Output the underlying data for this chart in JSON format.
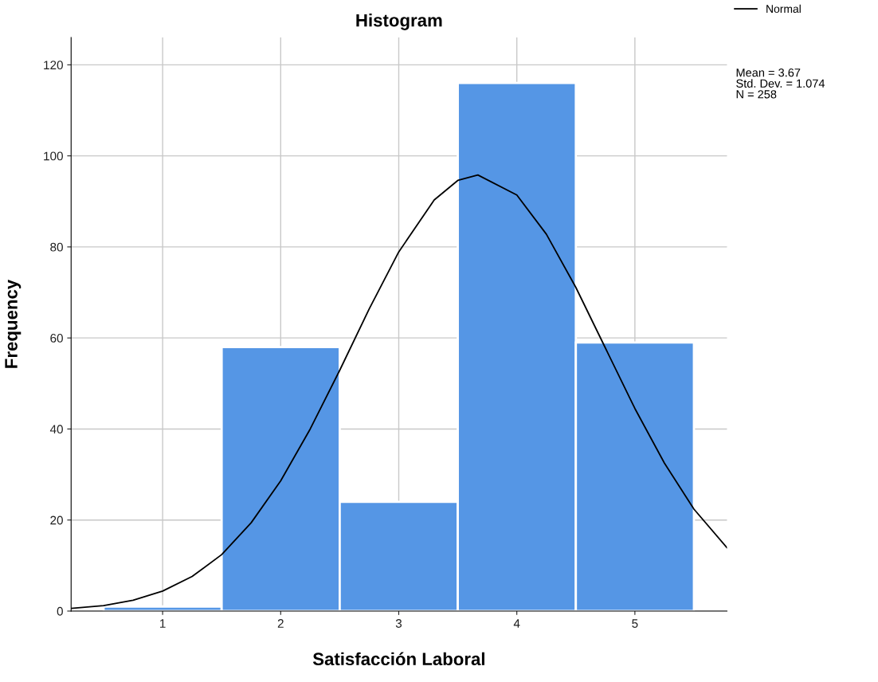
{
  "chart_data": {
    "type": "histogram",
    "title": "Histogram",
    "xlabel": "Satisfacción Laboral",
    "ylabel": "Frequency",
    "bins": [
      0.5,
      1.5,
      2.5,
      3.5,
      4.5,
      5.5
    ],
    "values": [
      1,
      58,
      24,
      116,
      59
    ],
    "color": "#5596e5",
    "series": [
      {
        "name": "Normal",
        "type": "line",
        "color": "#000000",
        "x": [
          0.225,
          0.5,
          0.75,
          1.0,
          1.25,
          1.5,
          1.75,
          2.0,
          2.25,
          2.5,
          2.75,
          3.0,
          3.3,
          3.5,
          3.67,
          4.0,
          4.25,
          4.5,
          4.75,
          5.0,
          5.25,
          5.5,
          5.78
        ],
        "values": [
          0.6,
          1.2,
          2.4,
          4.4,
          7.6,
          12.4,
          19.4,
          28.6,
          40,
          52.9,
          66.4,
          78.9,
          90.3,
          94.6,
          95.8,
          91.4,
          82.8,
          71.1,
          57.8,
          44.5,
          32.5,
          22.4,
          13.9
        ]
      }
    ],
    "annotations": [
      "Mean = 3.67",
      "Std. Dev. = 1.074",
      "N = 258"
    ],
    "xlim": [
      0.225,
      5.78
    ],
    "xticks": [
      1,
      2,
      3,
      4,
      5
    ],
    "ylim": [
      0,
      126
    ],
    "yticks": [
      0,
      20,
      40,
      60,
      80,
      100,
      120
    ],
    "grid": true,
    "legend": "top right"
  }
}
